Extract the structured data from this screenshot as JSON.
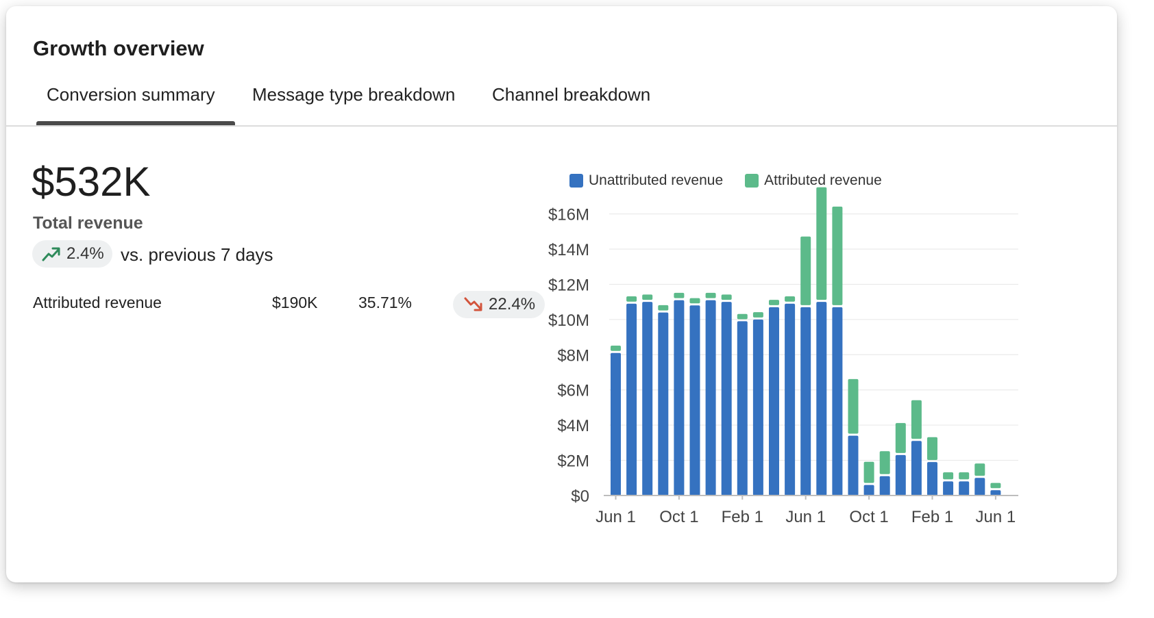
{
  "header": {
    "title": "Growth overview"
  },
  "tabs": [
    {
      "label": "Conversion summary",
      "active": true
    },
    {
      "label": "Message type breakdown",
      "active": false
    },
    {
      "label": "Channel breakdown",
      "active": false
    }
  ],
  "summary": {
    "total_value": "$532K",
    "total_label": "Total revenue",
    "change_pct": "2.4%",
    "change_direction": "up",
    "compare_text": "vs. previous 7 days",
    "attributed_row": {
      "label": "Attributed revenue",
      "value": "$190K",
      "share": "35.71%",
      "change_pct": "22.4%",
      "change_direction": "down"
    }
  },
  "colors": {
    "unattributed": "#3572c0",
    "attributed": "#5cba8a",
    "up_arrow": "#2e8a5a",
    "down_arrow": "#d2543c"
  },
  "icons": {
    "up": "trending-up-icon",
    "down": "trending-down-icon"
  },
  "chart_data": {
    "type": "bar",
    "stacked": true,
    "title": "",
    "xlabel": "",
    "ylabel": "",
    "ylim": [
      0,
      17500000
    ],
    "yticks": [
      0,
      2000000,
      4000000,
      6000000,
      8000000,
      10000000,
      12000000,
      14000000,
      16000000
    ],
    "ytick_labels": [
      "$0",
      "$2M",
      "$4M",
      "$6M",
      "$8M",
      "$10M",
      "$12M",
      "$14M",
      "$16M"
    ],
    "xtick_labels": [
      "Jun 1",
      "Oct 1",
      "Feb 1",
      "Jun 1",
      "Oct 1",
      "Feb 1",
      "Jun 1"
    ],
    "xtick_every": 4,
    "grid": true,
    "legend_position": "top-left",
    "series": [
      {
        "name": "Unattributed revenue",
        "color": "#3572c0",
        "values": [
          8100000.0,
          10900000.0,
          11000000.0,
          10400000.0,
          11100000.0,
          10800000.0,
          11100000.0,
          11000000.0,
          9900000.0,
          10000000.0,
          10700000.0,
          10900000.0,
          10700000.0,
          11000000.0,
          10700000.0,
          3400000.0,
          600000.0,
          1100000.0,
          2300000.0,
          3100000.0,
          1900000.0,
          800000.0,
          800000.0,
          1000000.0,
          300000.0
        ]
      },
      {
        "name": "Attributed revenue",
        "color": "#5cba8a",
        "values": [
          300000.0,
          300000.0,
          300000.0,
          300000.0,
          300000.0,
          300000.0,
          300000.0,
          300000.0,
          300000.0,
          300000.0,
          300000.0,
          300000.0,
          3900000.0,
          6400000.0,
          5600000.0,
          3100000.0,
          1200000.0,
          1300000.0,
          1700000.0,
          2200000.0,
          1300000.0,
          400000.0,
          400000.0,
          700000.0,
          300000.0
        ]
      }
    ]
  }
}
